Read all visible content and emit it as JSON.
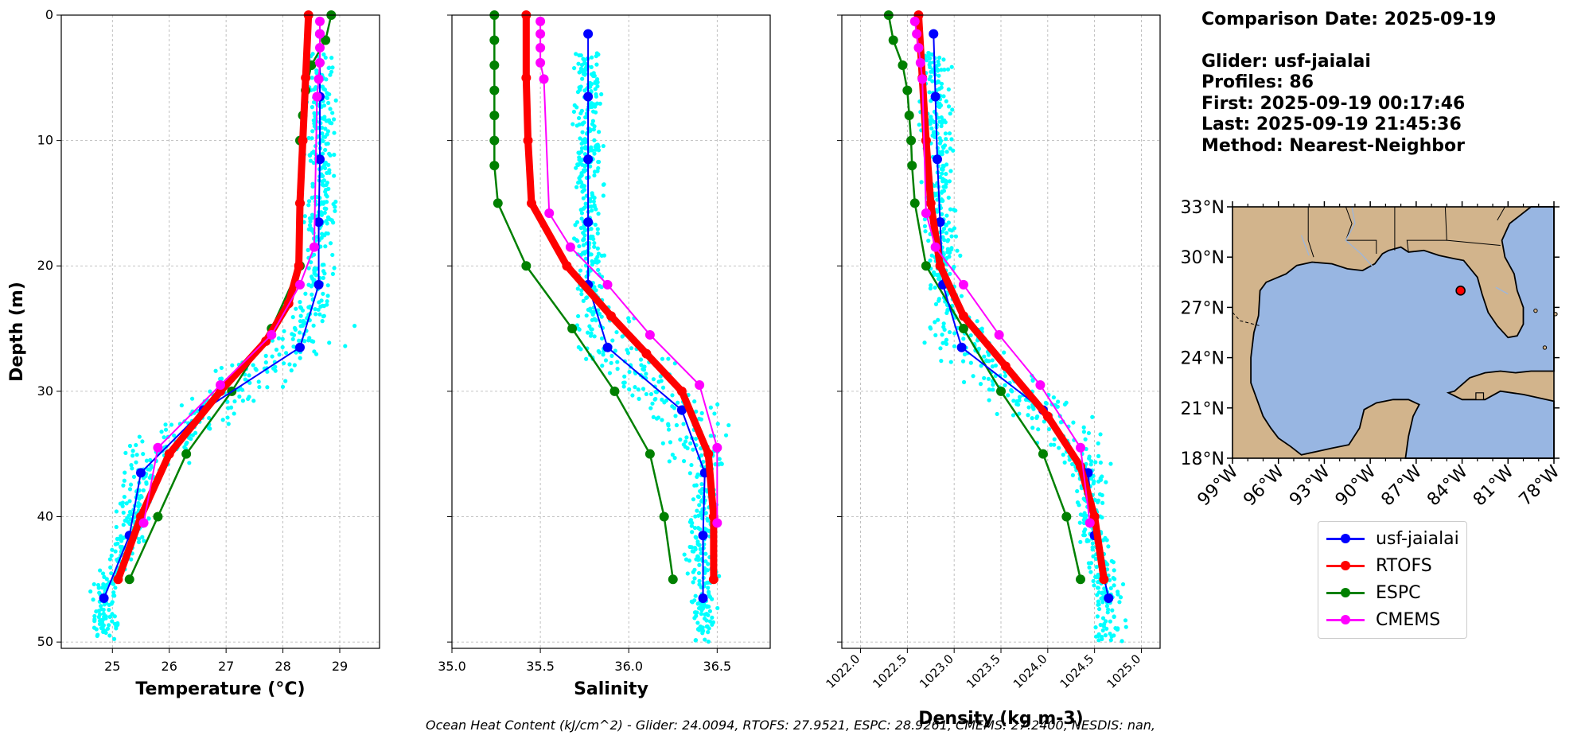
{
  "info": {
    "comparison": "Comparison Date: 2025-09-19",
    "glider": "Glider: usf-jaialai",
    "profiles": "Profiles: 86",
    "first": "First: 2025-09-19 00:17:46",
    "last": "Last: 2025-09-19 21:45:36",
    "method": "Method: Nearest-Neighbor"
  },
  "footer": "Ocean Heat Content (kJ/cm^2) - Glider: 24.0094,  RTOFS: 27.9521,  ESPC: 28.9261,  CMEMS: 27.2400,  NESDIS: nan,",
  "colors": {
    "glider": "#0000ff",
    "rtofs": "#ff0000",
    "espc": "#008000",
    "cmems": "#ff00ff",
    "scatter": "#00ffff",
    "land": "#d2b48c",
    "ocean": "#98b6e2"
  },
  "legend": [
    {
      "label": "usf-jaialai",
      "color": "#0000ff"
    },
    {
      "label": "RTOFS",
      "color": "#ff0000"
    },
    {
      "label": "ESPC",
      "color": "#008000"
    },
    {
      "label": "CMEMS",
      "color": "#ff00ff"
    }
  ],
  "chart_data": [
    {
      "type": "line",
      "xlabel": "Temperature (°C)",
      "ylabel": "Depth (m)",
      "xlim": [
        24.1,
        29.7
      ],
      "ylim": [
        50.5,
        0
      ],
      "xticks": [
        25,
        26,
        27,
        28,
        29
      ],
      "yticks": [
        0,
        10,
        20,
        30,
        40,
        50
      ],
      "grid": true,
      "scatter": {
        "name": "glider profiles",
        "depth_range": [
          3,
          50
        ],
        "x_range": [
          24.5,
          29.2
        ]
      },
      "series": [
        {
          "name": "usf-jaialai",
          "x": [
            28.65,
            28.65,
            28.65,
            28.63,
            28.63,
            28.3,
            26.6,
            25.5,
            25.3,
            24.85
          ],
          "y": [
            1.5,
            6.5,
            11.5,
            16.5,
            21.5,
            26.5,
            31.5,
            36.5,
            41.5,
            46.5
          ]
        },
        {
          "name": "RTOFS",
          "x": [
            28.45,
            28.4,
            28.35,
            28.3,
            28.28,
            28.1,
            27.7,
            26.9,
            26.0,
            25.5,
            25.1
          ],
          "y": [
            0,
            5,
            10,
            15,
            20,
            23,
            26,
            30,
            35,
            40,
            45
          ]
        },
        {
          "name": "ESPC",
          "x": [
            28.85,
            28.75,
            28.5,
            28.4,
            28.35,
            28.3,
            28.3,
            28.3,
            27.8,
            27.1,
            26.3,
            25.8,
            25.3
          ],
          "y": [
            0,
            2,
            4,
            6,
            8,
            10,
            15,
            20,
            25,
            30,
            35,
            40,
            45
          ]
        },
        {
          "name": "CMEMS",
          "x": [
            28.65,
            28.65,
            28.65,
            28.65,
            28.63,
            28.6,
            28.55,
            28.3,
            27.8,
            26.9,
            25.8,
            25.55
          ],
          "y": [
            0.5,
            1.5,
            2.6,
            3.8,
            5.1,
            6.5,
            18.5,
            21.5,
            25.5,
            29.5,
            34.5,
            40.5
          ]
        }
      ]
    },
    {
      "type": "line",
      "xlabel": "Salinity",
      "xlim": [
        35.0,
        36.8
      ],
      "ylim": [
        50.5,
        0
      ],
      "xticks": [
        35.0,
        35.5,
        36.0,
        36.5
      ],
      "grid": true,
      "scatter": {
        "name": "glider profiles",
        "depth_range": [
          3,
          50
        ],
        "x_range": [
          35.7,
          36.7
        ]
      },
      "series": [
        {
          "name": "usf-jaialai",
          "x": [
            35.77,
            35.77,
            35.77,
            35.77,
            35.77,
            35.88,
            36.3,
            36.43,
            36.42,
            36.42
          ],
          "y": [
            1.5,
            6.5,
            11.5,
            16.5,
            21.5,
            26.5,
            31.5,
            36.5,
            41.5,
            46.5
          ]
        },
        {
          "name": "RTOFS",
          "x": [
            35.42,
            35.42,
            35.43,
            35.45,
            35.65,
            35.9,
            36.1,
            36.3,
            36.45,
            36.48,
            36.48
          ],
          "y": [
            0,
            5,
            10,
            15,
            20,
            24,
            27,
            30,
            35,
            40,
            45
          ]
        },
        {
          "name": "ESPC",
          "x": [
            35.24,
            35.24,
            35.24,
            35.24,
            35.24,
            35.24,
            35.24,
            35.26,
            35.42,
            35.68,
            35.92,
            36.12,
            36.2,
            36.25
          ],
          "y": [
            0,
            2,
            4,
            6,
            8,
            10,
            12,
            15,
            20,
            25,
            30,
            35,
            40,
            45
          ]
        },
        {
          "name": "CMEMS",
          "x": [
            35.5,
            35.5,
            35.5,
            35.5,
            35.52,
            35.55,
            35.67,
            35.88,
            36.12,
            36.4,
            36.5,
            36.5
          ],
          "y": [
            0.5,
            1.5,
            2.6,
            3.8,
            5.1,
            15.8,
            18.5,
            21.5,
            25.5,
            29.5,
            34.5,
            40.5
          ]
        }
      ]
    },
    {
      "type": "line",
      "xlabel": "Density (kg m-3)",
      "xlim": [
        1021.8,
        1025.2
      ],
      "ylim": [
        50.5,
        0
      ],
      "xticks": [
        1022.0,
        1022.5,
        1023.0,
        1023.5,
        1024.0,
        1024.5,
        1025.0
      ],
      "grid": true,
      "scatter": {
        "name": "glider profiles",
        "depth_range": [
          3,
          50
        ],
        "x_range": [
          1022.7,
          1024.8
        ]
      },
      "series": [
        {
          "name": "usf-jaialai",
          "x": [
            1022.78,
            1022.8,
            1022.82,
            1022.85,
            1022.88,
            1023.08,
            1023.95,
            1024.43,
            1024.5,
            1024.65
          ],
          "y": [
            1.5,
            6.5,
            11.5,
            16.5,
            21.5,
            26.5,
            31.5,
            36.5,
            41.5,
            46.5
          ]
        },
        {
          "name": "RTOFS",
          "x": [
            1022.62,
            1022.66,
            1022.7,
            1022.75,
            1022.85,
            1023.1,
            1023.55,
            1024.0,
            1024.35,
            1024.5,
            1024.6
          ],
          "y": [
            0,
            5,
            10,
            15,
            20,
            24,
            28,
            32,
            36,
            40,
            45
          ]
        },
        {
          "name": "ESPC",
          "x": [
            1022.3,
            1022.35,
            1022.45,
            1022.5,
            1022.52,
            1022.54,
            1022.55,
            1022.58,
            1022.7,
            1023.1,
            1023.5,
            1023.95,
            1024.2,
            1024.35
          ],
          "y": [
            0,
            2,
            4,
            6,
            8,
            10,
            12,
            15,
            20,
            25,
            30,
            35,
            40,
            45
          ]
        },
        {
          "name": "CMEMS",
          "x": [
            1022.58,
            1022.6,
            1022.62,
            1022.64,
            1022.66,
            1022.7,
            1022.8,
            1023.1,
            1023.48,
            1023.92,
            1024.35,
            1024.45
          ],
          "y": [
            0.5,
            1.5,
            2.6,
            3.8,
            5.1,
            15.8,
            18.5,
            21.5,
            25.5,
            29.5,
            34.5,
            40.5
          ]
        }
      ]
    }
  ],
  "map": {
    "lat_ticks": [
      "33°N",
      "30°N",
      "27°N",
      "24°N",
      "21°N",
      "18°N"
    ],
    "lon_ticks": [
      "99°W",
      "96°W",
      "93°W",
      "90°W",
      "87°W",
      "84°W",
      "81°W",
      "78°W"
    ],
    "extent": {
      "lon": [
        -99,
        -78
      ],
      "lat": [
        18,
        33
      ]
    },
    "glider_position": {
      "lon": -84.1,
      "lat": 28.0
    }
  }
}
